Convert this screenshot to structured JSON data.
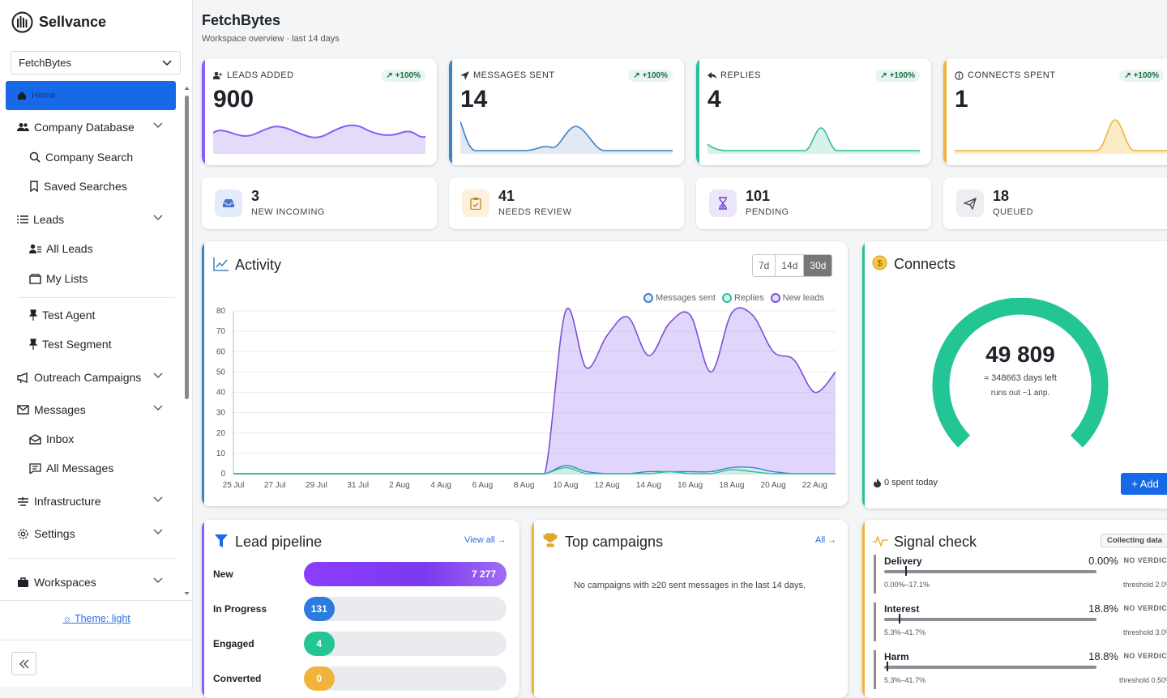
{
  "app": {
    "name": "Sellvance"
  },
  "sidebar": {
    "workspace_select": "FetchBytes",
    "items": [
      {
        "label": "Home"
      },
      {
        "label": "Company Database"
      },
      {
        "label": "Company Search"
      },
      {
        "label": "Saved Searches"
      },
      {
        "label": "Leads"
      },
      {
        "label": "All Leads"
      },
      {
        "label": "My Lists"
      },
      {
        "label": "Test Agent"
      },
      {
        "label": "Test Segment"
      },
      {
        "label": "Outreach Campaigns"
      },
      {
        "label": "Messages"
      },
      {
        "label": "Inbox"
      },
      {
        "label": "All Messages"
      },
      {
        "label": "Infrastructure"
      },
      {
        "label": "Settings"
      },
      {
        "label": "Workspaces"
      }
    ],
    "theme_link": "Theme: light"
  },
  "header": {
    "title": "FetchBytes",
    "subtitle": "Workspace overview · last 14 days"
  },
  "kpis": [
    {
      "label": "LEADS ADDED",
      "badge": "↗ +100%",
      "value": "900",
      "color": "#8b5cf6",
      "icon": "user-plus-icon"
    },
    {
      "label": "MESSAGES SENT",
      "badge": "↗ +100%",
      "value": "14",
      "color": "#3b82c4",
      "icon": "send-icon"
    },
    {
      "label": "REPLIES",
      "badge": "↗ +100%",
      "value": "4",
      "color": "#2bbf9f",
      "icon": "reply-icon"
    },
    {
      "label": "CONNECTS SPENT",
      "badge": "↗ +100%",
      "value": "1",
      "color": "#f0b43c",
      "icon": "coin-icon"
    }
  ],
  "stats": [
    {
      "value": "3",
      "label": "NEW INCOMING",
      "icon": "inbox-icon",
      "bg": "#e3ecfb"
    },
    {
      "value": "41",
      "label": "NEEDS REVIEW",
      "icon": "clipboard-icon",
      "bg": "#fdf0dc"
    },
    {
      "value": "101",
      "label": "PENDING",
      "icon": "hourglass-icon",
      "bg": "#ece6fb"
    },
    {
      "value": "18",
      "label": "QUEUED",
      "icon": "paper-plane-icon",
      "bg": "#eceef1"
    }
  ],
  "activity": {
    "title": "Activity",
    "ranges": [
      "7d",
      "14d",
      "30d"
    ],
    "active_range": "30d"
  },
  "chart_data": {
    "type": "area",
    "x": [
      "25 Jul",
      "26 Jul",
      "27 Jul",
      "28 Jul",
      "29 Jul",
      "30 Jul",
      "31 Jul",
      "1 Aug",
      "2 Aug",
      "3 Aug",
      "4 Aug",
      "5 Aug",
      "6 Aug",
      "7 Aug",
      "8 Aug",
      "9 Aug",
      "10 Aug",
      "11 Aug",
      "12 Aug",
      "13 Aug",
      "14 Aug",
      "15 Aug",
      "16 Aug",
      "17 Aug",
      "18 Aug",
      "19 Aug",
      "20 Aug",
      "21 Aug",
      "22 Aug",
      "23 Aug"
    ],
    "tick_labels": [
      "25 Jul",
      "27 Jul",
      "29 Jul",
      "31 Jul",
      "2 Aug",
      "4 Aug",
      "6 Aug",
      "8 Aug",
      "10 Aug",
      "12 Aug",
      "14 Aug",
      "16 Aug",
      "18 Aug",
      "20 Aug",
      "22 Aug"
    ],
    "series": [
      {
        "name": "Messages sent",
        "color": "#3b82c4",
        "values": [
          0,
          0,
          0,
          0,
          0,
          0,
          0,
          0,
          0,
          0,
          0,
          0,
          0,
          0,
          0,
          0,
          4,
          1,
          0,
          0,
          1,
          1,
          1,
          1,
          3,
          3,
          1,
          0,
          0,
          0
        ]
      },
      {
        "name": "Replies",
        "color": "#2bbf9f",
        "values": [
          0,
          0,
          0,
          0,
          0,
          0,
          0,
          0,
          0,
          0,
          0,
          0,
          0,
          0,
          0,
          0,
          3,
          0,
          0,
          0,
          0,
          1,
          0,
          0,
          2,
          1,
          0,
          0,
          0,
          0
        ]
      },
      {
        "name": "New leads",
        "color": "#7c4fd6",
        "values": [
          0,
          0,
          0,
          0,
          0,
          0,
          0,
          0,
          0,
          0,
          0,
          0,
          0,
          0,
          0,
          0,
          80,
          52,
          68,
          77,
          58,
          74,
          78,
          50,
          79,
          78,
          60,
          56,
          40,
          50
        ]
      }
    ],
    "ylim": [
      0,
      80
    ],
    "yticks": [
      0,
      10,
      20,
      30,
      40,
      50,
      60,
      70,
      80
    ],
    "grid": true,
    "legend": "top-right"
  },
  "connects": {
    "title": "Connects",
    "value": "49 809",
    "days_left": "≈ 348663 days left",
    "runs_out": "runs out ~1 апр.",
    "spent_today": "0 spent today",
    "add_label": "+ Add",
    "gauge_fraction": 1.0,
    "gauge_color": "#22c593"
  },
  "pipeline": {
    "title": "Lead pipeline",
    "view_all": "View all →",
    "rows": [
      {
        "label": "New",
        "value": "7 277",
        "fraction": 1.0,
        "color": "#7c3aed"
      },
      {
        "label": "In Progress",
        "value": "131",
        "fraction": 0.15,
        "color": "#2b7be0"
      },
      {
        "label": "Engaged",
        "value": "4",
        "fraction": 0.15,
        "color": "#22c593"
      },
      {
        "label": "Converted",
        "value": "0",
        "fraction": 0.15,
        "color": "#f0b43c"
      }
    ]
  },
  "campaigns": {
    "title": "Top campaigns",
    "all_link": "All →",
    "empty": "No campaigns with ≥20 sent messages in the last 14 days."
  },
  "signal": {
    "title": "Signal check",
    "badge": "Collecting data",
    "rows": [
      {
        "name": "Delivery",
        "pct": "0.00%",
        "verdict": "NO VERDICT",
        "range": "0.00%–17.1%",
        "threshold": "threshold 2.0%",
        "marker": 0.1
      },
      {
        "name": "Interest",
        "pct": "18.8%",
        "verdict": "NO VERDICT",
        "range": "5.3%–41.7%",
        "threshold": "threshold 3.0%",
        "marker": 0.07
      },
      {
        "name": "Harm",
        "pct": "18.8%",
        "verdict": "NO VERDICT",
        "range": "5.3%–41.7%",
        "threshold": "threshold 0.50%",
        "marker": 0.01
      }
    ]
  }
}
